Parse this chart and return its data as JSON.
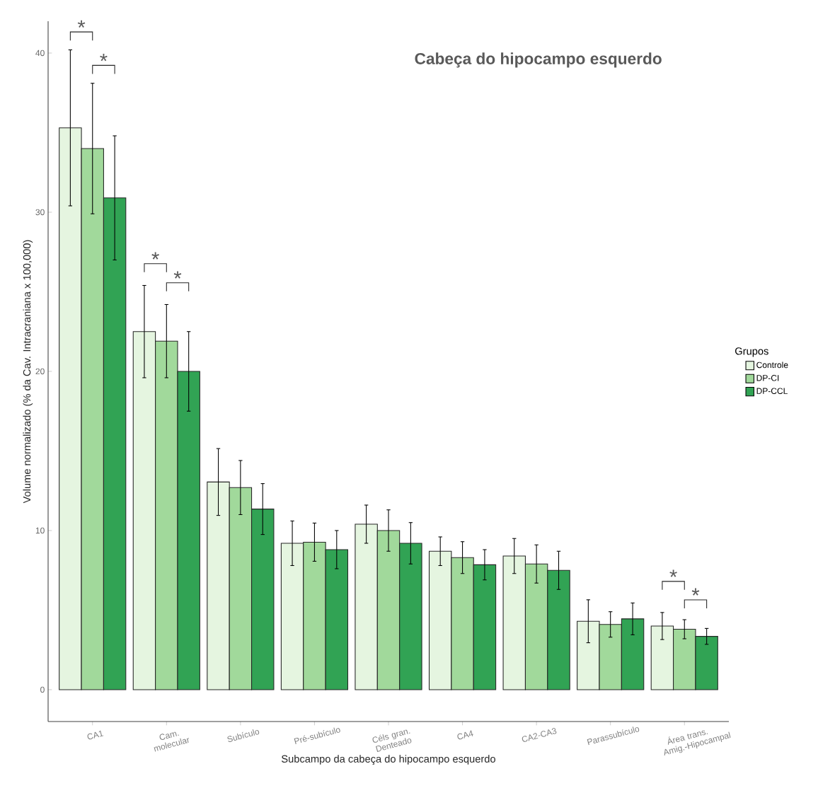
{
  "chart_data": {
    "type": "bar",
    "title": "Cabeça do hipocampo esquerdo",
    "xlabel": "Subcampo da cabeça do hipocampo esquerdo",
    "ylabel": "Volume normalizado (% da Cav. Intracraniana x 100,000)",
    "legend_title": "Grupos",
    "categories": [
      "CA1",
      "Cam. molecular",
      "Subículo",
      "Pré-subículo",
      "Céls gran. Denteado",
      "CA4",
      "CA2-CA3",
      "Parassubículo",
      "Área trans. Amig.-Hipocampal"
    ],
    "series": [
      {
        "name": "Controle",
        "color": "#e5f5e0",
        "values": [
          35.3,
          22.5,
          13.05,
          9.2,
          10.4,
          8.7,
          8.4,
          4.3,
          4.0
        ],
        "errors": [
          4.9,
          2.9,
          2.1,
          1.4,
          1.2,
          0.9,
          1.1,
          1.35,
          0.85
        ]
      },
      {
        "name": "DP-CI",
        "color": "#a1d99b",
        "values": [
          34.0,
          21.9,
          12.7,
          9.27,
          10.0,
          8.3,
          7.9,
          4.1,
          3.8
        ],
        "errors": [
          4.1,
          2.3,
          1.7,
          1.2,
          1.3,
          1.0,
          1.2,
          0.8,
          0.6
        ]
      },
      {
        "name": "DP-CCL",
        "color": "#31a354",
        "values": [
          30.9,
          20.0,
          11.35,
          8.8,
          9.2,
          7.85,
          7.5,
          4.45,
          3.35
        ],
        "errors": [
          3.9,
          2.5,
          1.6,
          1.2,
          1.3,
          0.95,
          1.2,
          1.0,
          0.5
        ]
      }
    ],
    "annotations": [
      "*",
      "*",
      "*",
      "*",
      "*",
      "*"
    ],
    "ylim": [
      -2,
      42
    ],
    "yticks": [
      0,
      10,
      20,
      30,
      40
    ],
    "grid": false,
    "legend": "right"
  }
}
